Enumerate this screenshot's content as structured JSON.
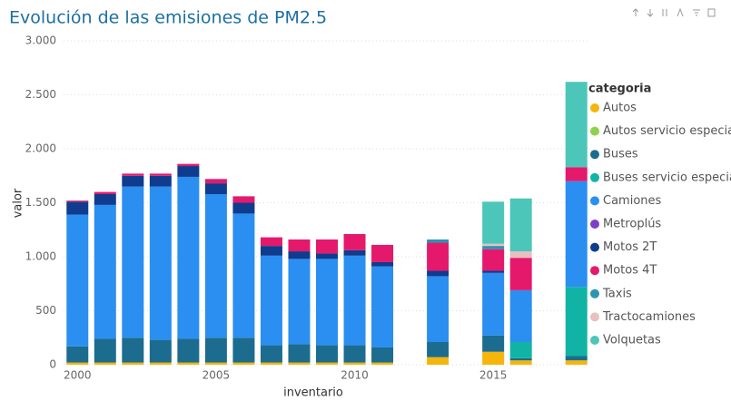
{
  "chart_data": {
    "type": "stacked_bar",
    "title": "Evolución de las emisiones de PM2.5",
    "x_label": "inventario",
    "y_label": "valor",
    "legend_title": "categoria",
    "x": [
      2000,
      2001,
      2002,
      2003,
      2004,
      2005,
      2006,
      2007,
      2008,
      2009,
      2010,
      2011,
      2013,
      2015,
      2016,
      2018
    ],
    "xlim": [
      1999.5,
      2018.5
    ],
    "xticks": [
      2000,
      2005,
      2010,
      2015
    ],
    "ylim": [
      0,
      3000
    ],
    "yticks": [
      0,
      {
        "value": 500,
        "label": "500"
      },
      {
        "value": 1000,
        "label": "1.000"
      },
      {
        "value": 1500,
        "label": "1.500"
      },
      {
        "value": 2000,
        "label": "2.000"
      },
      {
        "value": 2500,
        "label": "2.500"
      },
      {
        "value": 3000,
        "label": "3.000"
      }
    ],
    "grid": true,
    "series": [
      {
        "name": "Autos",
        "color": "#f5b50a",
        "values": [
          20,
          20,
          20,
          20,
          20,
          20,
          20,
          20,
          20,
          20,
          20,
          20,
          70,
          120,
          40,
          40
        ]
      },
      {
        "name": "Autos servicio especial",
        "color": "#8fd14f",
        "values": [
          0,
          0,
          0,
          0,
          0,
          0,
          0,
          0,
          0,
          0,
          0,
          0,
          0,
          0,
          0,
          0
        ]
      },
      {
        "name": "Buses",
        "color": "#1c6c8f",
        "values": [
          150,
          220,
          230,
          210,
          220,
          230,
          230,
          160,
          170,
          160,
          160,
          140,
          140,
          150,
          20,
          40
        ]
      },
      {
        "name": "Buses servicio especial",
        "color": "#11b4a4",
        "values": [
          0,
          0,
          0,
          0,
          0,
          0,
          0,
          0,
          0,
          0,
          0,
          0,
          0,
          0,
          150,
          640
        ]
      },
      {
        "name": "Camiones",
        "color": "#2a8ff0",
        "values": [
          1220,
          1240,
          1400,
          1420,
          1500,
          1330,
          1150,
          830,
          790,
          800,
          830,
          750,
          610,
          580,
          480,
          980
        ]
      },
      {
        "name": "Metroplús",
        "color": "#7b40c8",
        "values": [
          0,
          0,
          0,
          0,
          0,
          0,
          0,
          0,
          0,
          0,
          0,
          0,
          0,
          0,
          0,
          0
        ]
      },
      {
        "name": "Motos 2T",
        "color": "#0f3c8e",
        "values": [
          120,
          100,
          100,
          100,
          100,
          100,
          100,
          90,
          70,
          50,
          50,
          40,
          50,
          20,
          0,
          0
        ]
      },
      {
        "name": "Motos 4T",
        "color": "#e5196c",
        "values": [
          10,
          20,
          20,
          20,
          20,
          40,
          60,
          80,
          110,
          130,
          150,
          160,
          260,
          200,
          300,
          130
        ]
      },
      {
        "name": "Taxis",
        "color": "#2c93b3",
        "values": [
          0,
          0,
          0,
          0,
          0,
          0,
          0,
          0,
          0,
          0,
          0,
          0,
          30,
          30,
          0,
          0
        ]
      },
      {
        "name": "Tractocamiones",
        "color": "#e9c0c1",
        "values": [
          0,
          0,
          0,
          0,
          0,
          0,
          0,
          0,
          0,
          0,
          0,
          0,
          0,
          20,
          60,
          0
        ]
      },
      {
        "name": "Volquetas",
        "color": "#4cc6b8",
        "values": [
          0,
          0,
          0,
          0,
          0,
          0,
          0,
          0,
          0,
          0,
          0,
          0,
          0,
          390,
          490,
          790
        ]
      }
    ]
  }
}
